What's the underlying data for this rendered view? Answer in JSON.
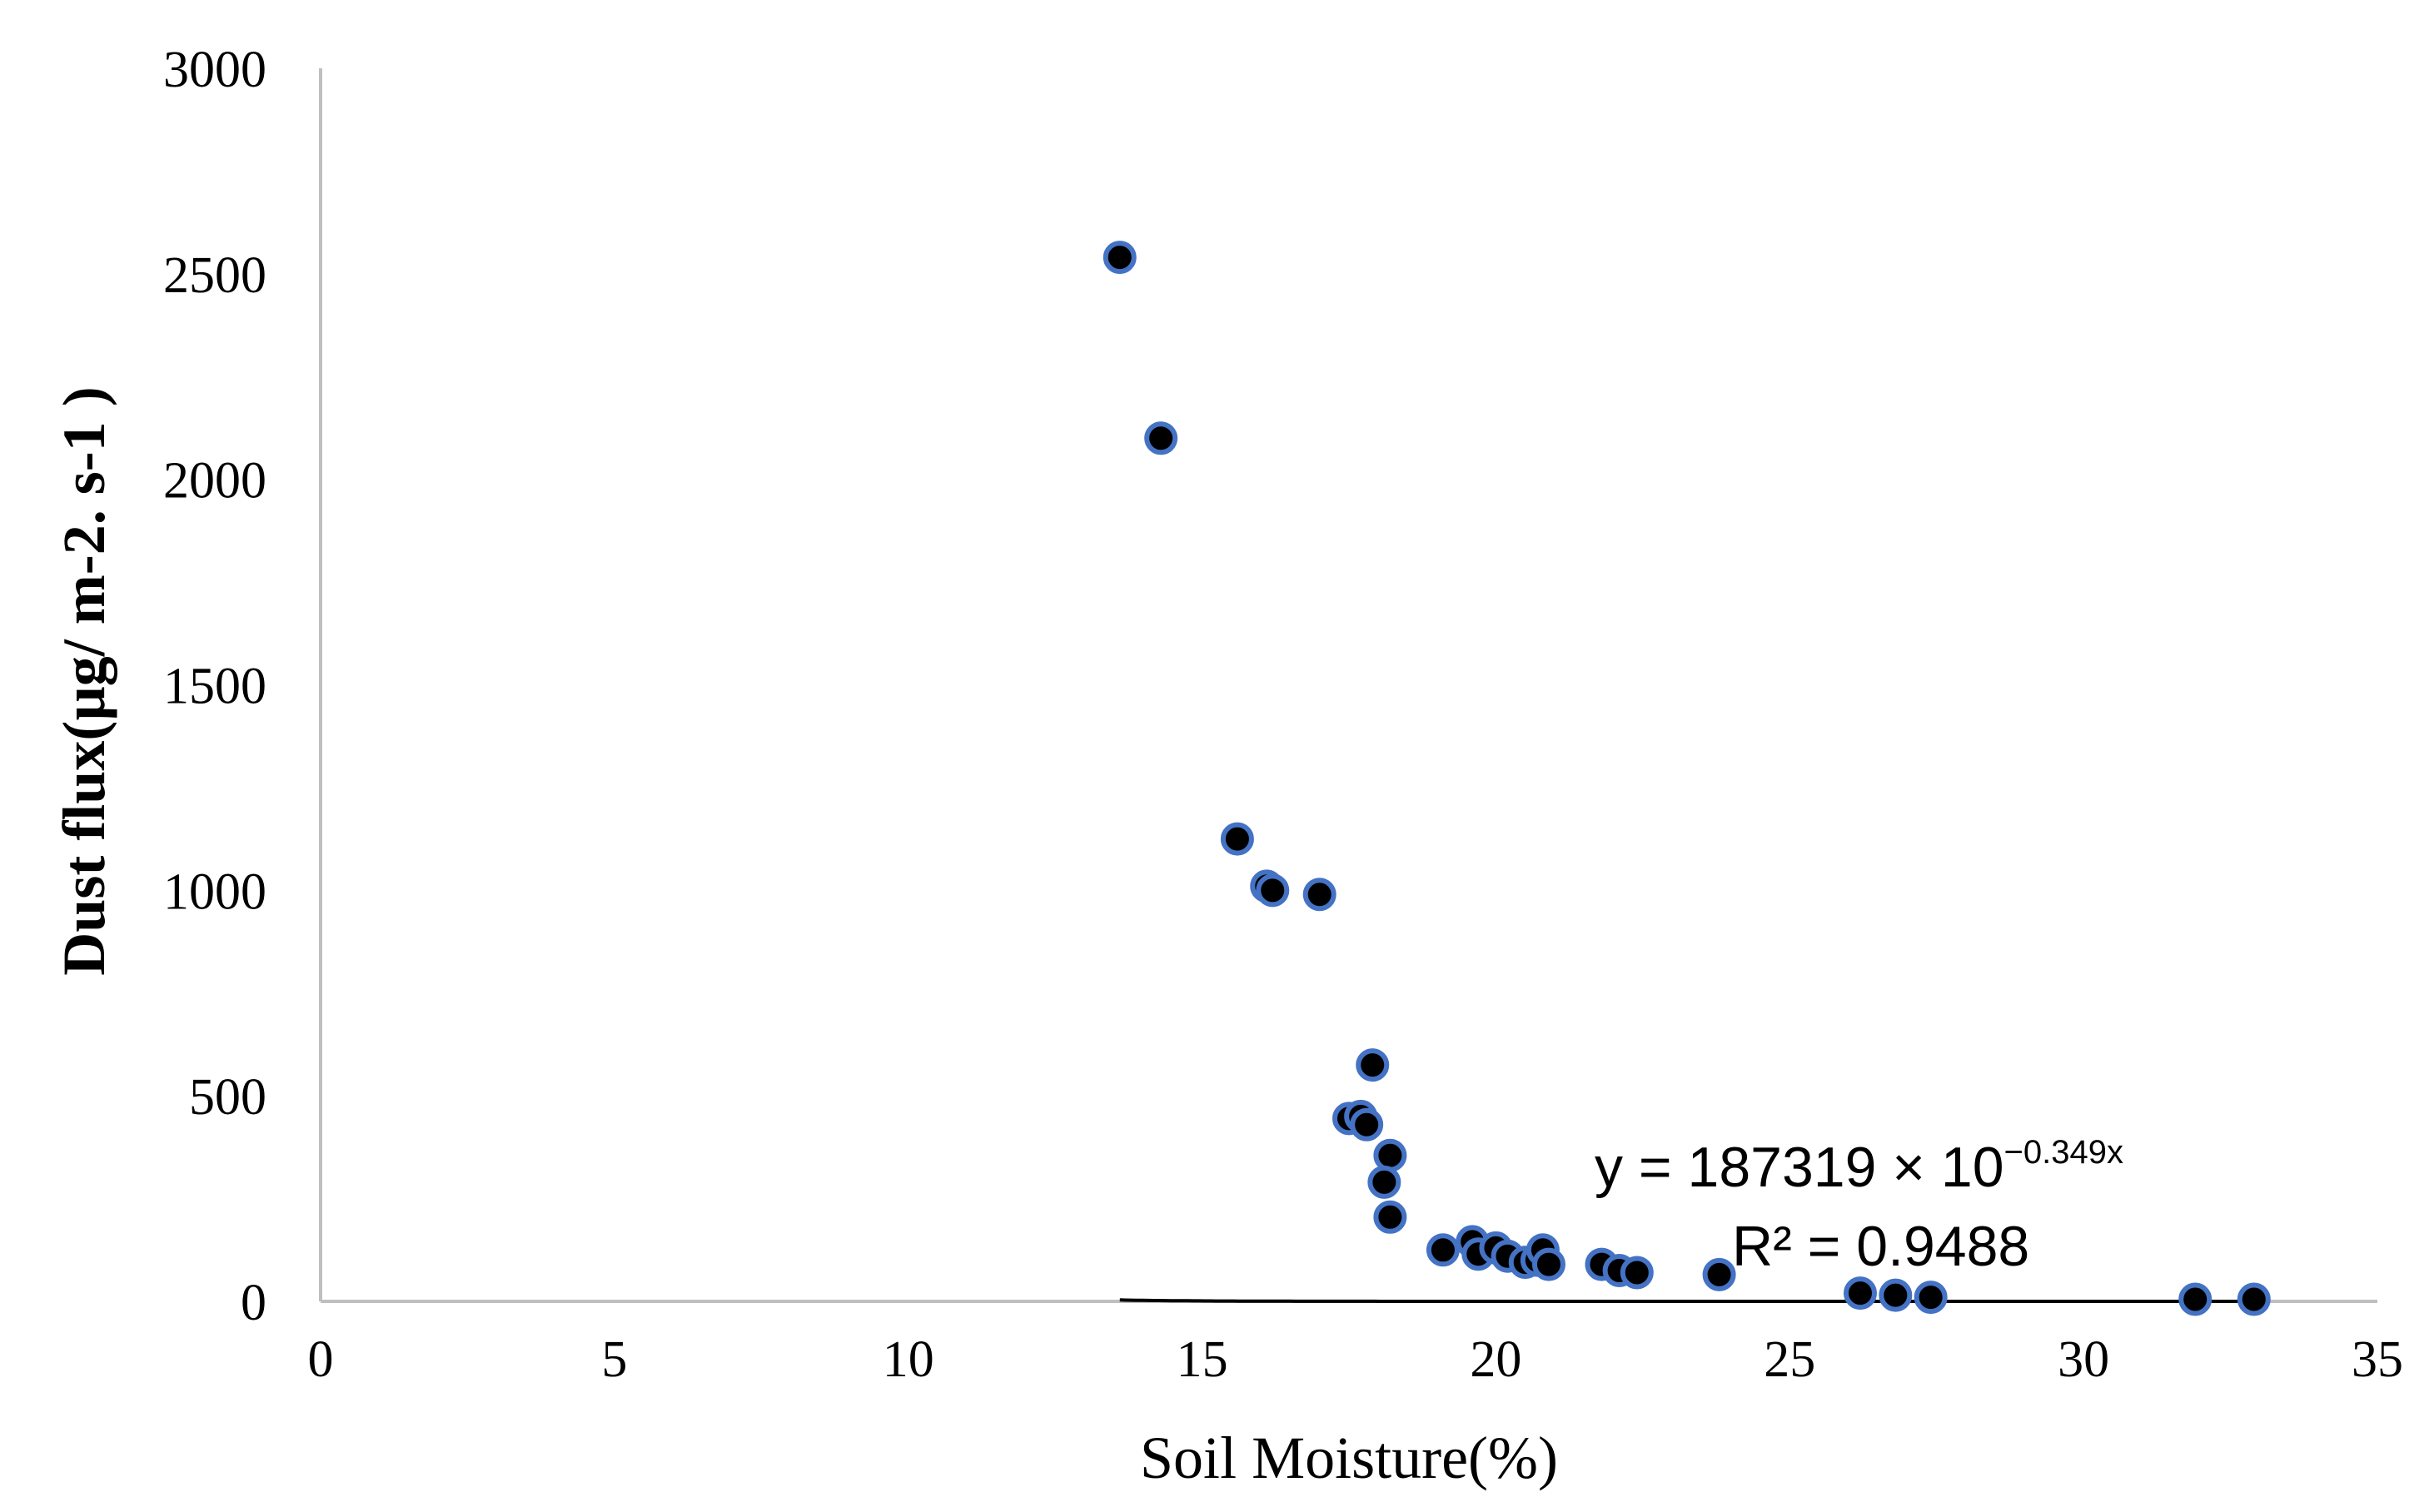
{
  "chart_data": {
    "type": "scatter",
    "xlabel": "Soil Moisture(%)",
    "ylabel": "Dust flux(µg/ m-2. s-1 )",
    "xlim": [
      0,
      35
    ],
    "ylim": [
      0,
      3000
    ],
    "x_ticks": [
      "0",
      "5",
      "10",
      "15",
      "20",
      "25",
      "30",
      "35"
    ],
    "y_ticks": [
      "0",
      "500",
      "1000",
      "1500",
      "2000",
      "2500",
      "3000"
    ],
    "grid": false,
    "points": [
      {
        "x": 13.6,
        "y": 2540
      },
      {
        "x": 14.3,
        "y": 2100
      },
      {
        "x": 15.6,
        "y": 1125
      },
      {
        "x": 16.1,
        "y": 1010
      },
      {
        "x": 16.2,
        "y": 1000
      },
      {
        "x": 17.0,
        "y": 990
      },
      {
        "x": 17.9,
        "y": 575
      },
      {
        "x": 17.5,
        "y": 445
      },
      {
        "x": 17.7,
        "y": 450
      },
      {
        "x": 17.8,
        "y": 430
      },
      {
        "x": 18.2,
        "y": 355
      },
      {
        "x": 18.1,
        "y": 290
      },
      {
        "x": 18.2,
        "y": 205
      },
      {
        "x": 19.1,
        "y": 125
      },
      {
        "x": 19.6,
        "y": 145
      },
      {
        "x": 19.7,
        "y": 115
      },
      {
        "x": 20.0,
        "y": 130
      },
      {
        "x": 20.2,
        "y": 110
      },
      {
        "x": 20.5,
        "y": 95
      },
      {
        "x": 20.7,
        "y": 100
      },
      {
        "x": 20.8,
        "y": 125
      },
      {
        "x": 20.9,
        "y": 90
      },
      {
        "x": 21.8,
        "y": 90
      },
      {
        "x": 22.1,
        "y": 75
      },
      {
        "x": 22.4,
        "y": 70
      },
      {
        "x": 23.8,
        "y": 65
      },
      {
        "x": 26.2,
        "y": 20
      },
      {
        "x": 26.8,
        "y": 15
      },
      {
        "x": 27.4,
        "y": 10
      },
      {
        "x": 31.9,
        "y": 5
      },
      {
        "x": 32.9,
        "y": 5
      }
    ],
    "trendline": {
      "type": "exponential",
      "coefficient": 187319,
      "base": 10,
      "exponent_factor": -0.349,
      "x_start": 13.6,
      "x_end": 32.9
    },
    "annotations": {
      "equation_prefix": "y = 187319 × 10",
      "equation_exponent": "−0.349x",
      "r_squared": "R² = 0.9488"
    },
    "colors": {
      "marker_fill": "#000000",
      "marker_stroke": "#4472C4",
      "axis": "#BFBFBF",
      "trendline": "#000000"
    }
  }
}
